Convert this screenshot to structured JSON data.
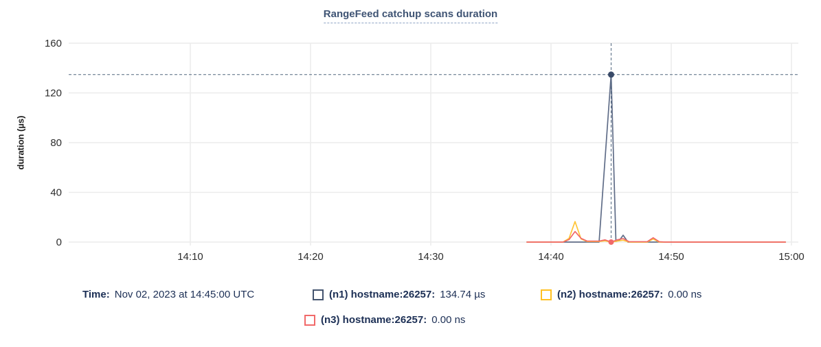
{
  "title": "RangeFeed catchup scans duration",
  "chart_data": {
    "type": "line",
    "title": "RangeFeed catchup scans duration",
    "xlabel": "",
    "ylabel": "duration (µs)",
    "ylim": [
      0,
      160
    ],
    "grid": true,
    "legend_position": "bottom",
    "y_ticks": [
      0,
      40,
      80,
      120,
      160
    ],
    "x_ticks": [
      {
        "t": 10,
        "label": "14:10"
      },
      {
        "t": 20,
        "label": "14:20"
      },
      {
        "t": 30,
        "label": "14:30"
      },
      {
        "t": 40,
        "label": "14:40"
      },
      {
        "t": 50,
        "label": "14:50"
      },
      {
        "t": 60,
        "label": "15:00"
      }
    ],
    "x_unit": "minutes after 14:00 UTC",
    "series": [
      {
        "name": "(n1) hostname:26257",
        "unit": "µs",
        "color": "#5f6c87",
        "points": [
          [
            38,
            0
          ],
          [
            44,
            0
          ],
          [
            45,
            134.74
          ],
          [
            45.4,
            0.5
          ],
          [
            45.7,
            1.5
          ],
          [
            46,
            5.5
          ],
          [
            46.4,
            0
          ],
          [
            59.5,
            0
          ]
        ]
      },
      {
        "name": "(n2) hostname:26257",
        "unit": "ns",
        "color": "#ffc536",
        "points": [
          [
            38,
            0
          ],
          [
            41,
            0
          ],
          [
            41.5,
            3
          ],
          [
            42,
            16.5
          ],
          [
            42.5,
            2.5
          ],
          [
            43,
            0.5
          ],
          [
            44,
            0.5
          ],
          [
            44.5,
            1
          ],
          [
            45,
            0
          ],
          [
            45.5,
            0.8
          ],
          [
            46,
            1.5
          ],
          [
            46.5,
            0
          ],
          [
            48,
            0
          ],
          [
            48.5,
            2.5
          ],
          [
            49,
            0
          ],
          [
            59.5,
            0
          ]
        ]
      },
      {
        "name": "(n3) hostname:26257",
        "unit": "ns",
        "color": "#f16969",
        "points": [
          [
            38,
            0
          ],
          [
            41,
            0
          ],
          [
            41.5,
            2
          ],
          [
            42,
            8.5
          ],
          [
            42.5,
            3
          ],
          [
            43,
            0.8
          ],
          [
            44,
            0.8
          ],
          [
            44.5,
            1.8
          ],
          [
            45,
            0
          ],
          [
            45.5,
            1.8
          ],
          [
            46,
            2.8
          ],
          [
            46.5,
            0.3
          ],
          [
            48,
            0.3
          ],
          [
            48.5,
            3.5
          ],
          [
            49,
            0.3
          ],
          [
            49.5,
            0
          ],
          [
            59.5,
            0
          ]
        ]
      }
    ],
    "crosshair": {
      "t": 45,
      "value": 134.74,
      "line_color": "#51677f",
      "point_color": "#394a68",
      "baseline_point_color": "#f16969"
    }
  },
  "legend": {
    "time_label": "Time:",
    "time_value": "Nov 02, 2023 at 14:45:00 UTC",
    "items": [
      {
        "label": "(n1) hostname:26257:",
        "value": "134.74 µs",
        "color": "#44546f"
      },
      {
        "label": "(n2) hostname:26257:",
        "value": "0.00 ns",
        "color": "#ffc021"
      },
      {
        "label": "(n3) hostname:26257:",
        "value": "0.00 ns",
        "color": "#f16969"
      }
    ]
  },
  "colors": {
    "title_text": "#3f5474",
    "legend_text": "#1c2f55",
    "axis_text": "#2e2e2e",
    "grid": "#ececec"
  }
}
